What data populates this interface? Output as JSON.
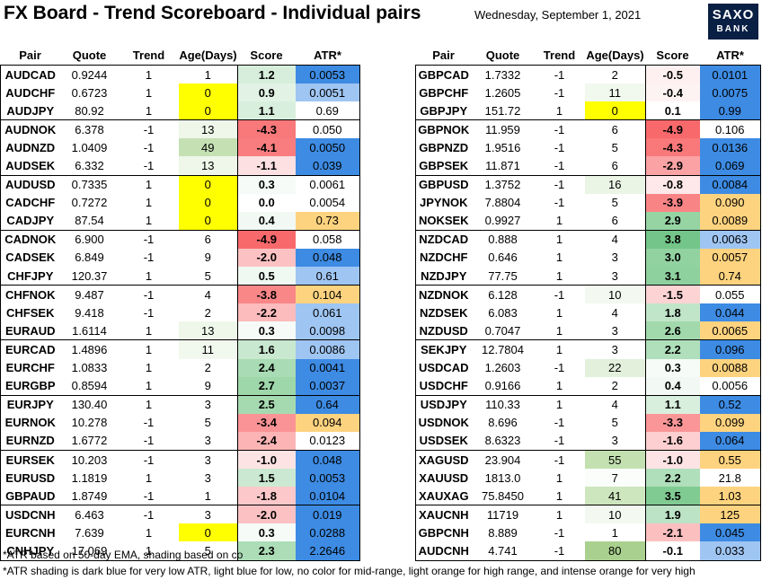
{
  "title": "FX Board - Trend Scoreboard - Individual pairs",
  "date": "Wednesday, September 1, 2021",
  "logo": {
    "line1": "SAXO",
    "line2": "BANK"
  },
  "headers": [
    "Pair",
    "Quote",
    "Trend",
    "Age(Days)",
    "Score",
    "ATR*"
  ],
  "colors": {
    "age_yellow": "#ffff00",
    "score_green_dark": "#63be7b",
    "score_green": "#a9dcb4",
    "score_green_light": "#d6eedb",
    "score_red_dark": "#f8696b",
    "score_red": "#fba7a9",
    "score_red_light": "#fde0e1",
    "atr_dark_blue": "#3d8be3",
    "atr_light_blue": "#9fc5f2",
    "atr_light_orange": "#fed37f",
    "atr_orange": "#fbb04c"
  },
  "left_table": [
    {
      "pair": "AUDCAD",
      "quote": "0.9244",
      "trend": "1",
      "age": "1",
      "score": "1.2",
      "atr": "0.0053",
      "age_bg": "",
      "score_bg": "#d6eedb",
      "atr_bg": "#3d8be3",
      "grp": false
    },
    {
      "pair": "AUDCHF",
      "quote": "0.6723",
      "trend": "1",
      "age": "0",
      "score": "0.9",
      "atr": "0.0051",
      "age_bg": "#ffff00",
      "score_bg": "#e2f3e6",
      "atr_bg": "#9fc5f2",
      "grp": false
    },
    {
      "pair": "AUDJPY",
      "quote": "80.92",
      "trend": "1",
      "age": "0",
      "score": "1.1",
      "atr": "0.69",
      "age_bg": "#ffff00",
      "score_bg": "#d9efde",
      "atr_bg": "",
      "grp": true
    },
    {
      "pair": "AUDNOK",
      "quote": "6.378",
      "trend": "-1",
      "age": "13",
      "score": "-4.3",
      "atr": "0.050",
      "age_bg": "#eef7ea",
      "score_bg": "#f9787a",
      "atr_bg": "",
      "grp": false
    },
    {
      "pair": "AUDNZD",
      "quote": "1.0409",
      "trend": "-1",
      "age": "49",
      "score": "-4.1",
      "atr": "0.0050",
      "age_bg": "#c5e1b4",
      "score_bg": "#f97d7f",
      "atr_bg": "#3d8be3",
      "grp": false
    },
    {
      "pair": "AUDSEK",
      "quote": "6.332",
      "trend": "-1",
      "age": "13",
      "score": "-1.1",
      "atr": "0.039",
      "age_bg": "#eef7ea",
      "score_bg": "#fde0e1",
      "atr_bg": "#3d8be3",
      "grp": true
    },
    {
      "pair": "AUDUSD",
      "quote": "0.7335",
      "trend": "1",
      "age": "0",
      "score": "0.3",
      "atr": "0.0061",
      "age_bg": "#ffff00",
      "score_bg": "#f6fbf7",
      "atr_bg": "",
      "grp": false
    },
    {
      "pair": "CADCHF",
      "quote": "0.7272",
      "trend": "1",
      "age": "0",
      "score": "0.0",
      "atr": "0.0054",
      "age_bg": "#ffff00",
      "score_bg": "",
      "atr_bg": "",
      "grp": false
    },
    {
      "pair": "CADJPY",
      "quote": "87.54",
      "trend": "1",
      "age": "0",
      "score": "0.4",
      "atr": "0.73",
      "age_bg": "#ffff00",
      "score_bg": "#f2f9f4",
      "atr_bg": "#fed37f",
      "grp": true
    },
    {
      "pair": "CADNOK",
      "quote": "6.900",
      "trend": "-1",
      "age": "6",
      "score": "-4.9",
      "atr": "0.058",
      "age_bg": "",
      "score_bg": "#f8696b",
      "atr_bg": "",
      "grp": false
    },
    {
      "pair": "CADSEK",
      "quote": "6.849",
      "trend": "-1",
      "age": "9",
      "score": "-2.0",
      "atr": "0.048",
      "age_bg": "",
      "score_bg": "#fcc2c3",
      "atr_bg": "#3d8be3",
      "grp": false
    },
    {
      "pair": "CHFJPY",
      "quote": "120.37",
      "trend": "1",
      "age": "5",
      "score": "0.5",
      "atr": "0.61",
      "age_bg": "",
      "score_bg": "#eff8f1",
      "atr_bg": "#9fc5f2",
      "grp": true
    },
    {
      "pair": "CHFNOK",
      "quote": "9.487",
      "trend": "-1",
      "age": "4",
      "score": "-3.8",
      "atr": "0.104",
      "age_bg": "",
      "score_bg": "#f98788",
      "atr_bg": "#fed37f",
      "grp": false
    },
    {
      "pair": "CHFSEK",
      "quote": "9.418",
      "trend": "-1",
      "age": "2",
      "score": "-2.2",
      "atr": "0.061",
      "age_bg": "",
      "score_bg": "#fcbbbc",
      "atr_bg": "#9fc5f2",
      "grp": false
    },
    {
      "pair": "EURAUD",
      "quote": "1.6114",
      "trend": "1",
      "age": "13",
      "score": "0.3",
      "atr": "0.0098",
      "age_bg": "#eef7ea",
      "score_bg": "#f6fbf7",
      "atr_bg": "#9fc5f2",
      "grp": true
    },
    {
      "pair": "EURCAD",
      "quote": "1.4896",
      "trend": "1",
      "age": "11",
      "score": "1.6",
      "atr": "0.0086",
      "age_bg": "#f1f8ee",
      "score_bg": "#c8e8cf",
      "atr_bg": "#9fc5f2",
      "grp": false
    },
    {
      "pair": "EURCHF",
      "quote": "1.0833",
      "trend": "1",
      "age": "2",
      "score": "2.4",
      "atr": "0.0041",
      "age_bg": "",
      "score_bg": "#a9dcb4",
      "atr_bg": "#3d8be3",
      "grp": false
    },
    {
      "pair": "EURGBP",
      "quote": "0.8594",
      "trend": "1",
      "age": "9",
      "score": "2.7",
      "atr": "0.0037",
      "age_bg": "",
      "score_bg": "#9ed7aa",
      "atr_bg": "#3d8be3",
      "grp": true
    },
    {
      "pair": "EURJPY",
      "quote": "130.40",
      "trend": "1",
      "age": "3",
      "score": "2.5",
      "atr": "0.64",
      "age_bg": "",
      "score_bg": "#a5dab1",
      "atr_bg": "#3d8be3",
      "grp": false
    },
    {
      "pair": "EURNOK",
      "quote": "10.278",
      "trend": "-1",
      "age": "5",
      "score": "-3.4",
      "atr": "0.094",
      "age_bg": "",
      "score_bg": "#fa9395",
      "atr_bg": "#fed37f",
      "grp": false
    },
    {
      "pair": "EURNZD",
      "quote": "1.6772",
      "trend": "-1",
      "age": "3",
      "score": "-2.4",
      "atr": "0.0123",
      "age_bg": "",
      "score_bg": "#fcb4b5",
      "atr_bg": "",
      "grp": true
    },
    {
      "pair": "EURSEK",
      "quote": "10.203",
      "trend": "-1",
      "age": "3",
      "score": "-1.0",
      "atr": "0.048",
      "age_bg": "",
      "score_bg": "#fde3e4",
      "atr_bg": "#3d8be3",
      "grp": false
    },
    {
      "pair": "EURUSD",
      "quote": "1.1819",
      "trend": "1",
      "age": "3",
      "score": "1.5",
      "atr": "0.0053",
      "age_bg": "",
      "score_bg": "#cbe9d2",
      "atr_bg": "#3d8be3",
      "grp": false
    },
    {
      "pair": "GBPAUD",
      "quote": "1.8749",
      "trend": "-1",
      "age": "1",
      "score": "-1.8",
      "atr": "0.0104",
      "age_bg": "",
      "score_bg": "#fcc8c9",
      "atr_bg": "#3d8be3",
      "grp": true
    },
    {
      "pair": "USDCNH",
      "quote": "6.463",
      "trend": "-1",
      "age": "3",
      "score": "-2.0",
      "atr": "0.019",
      "age_bg": "",
      "score_bg": "#fcc2c3",
      "atr_bg": "#3d8be3",
      "grp": false
    },
    {
      "pair": "EURCNH",
      "quote": "7.639",
      "trend": "1",
      "age": "0",
      "score": "0.3",
      "atr": "0.0288",
      "age_bg": "#ffff00",
      "score_bg": "#f6fbf7",
      "atr_bg": "#3d8be3",
      "grp": false
    },
    {
      "pair": "CNHJPY",
      "quote": "17.069",
      "trend": "1",
      "age": "5",
      "score": "2.3",
      "atr": "2.2646",
      "age_bg": "",
      "score_bg": "#acddb7",
      "atr_bg": "#3d8be3",
      "grp": true
    }
  ],
  "right_table": [
    {
      "pair": "GBPCAD",
      "quote": "1.7332",
      "trend": "-1",
      "age": "2",
      "score": "-0.5",
      "atr": "0.0101",
      "age_bg": "",
      "score_bg": "#fef0f0",
      "atr_bg": "#3d8be3",
      "grp": false
    },
    {
      "pair": "GBPCHF",
      "quote": "1.2605",
      "trend": "-1",
      "age": "11",
      "score": "-0.4",
      "atr": "0.0075",
      "age_bg": "#f1f8ee",
      "score_bg": "#fef3f3",
      "atr_bg": "#3d8be3",
      "grp": false
    },
    {
      "pair": "GBPJPY",
      "quote": "151.72",
      "trend": "1",
      "age": "0",
      "score": "0.1",
      "atr": "0.99",
      "age_bg": "#ffff00",
      "score_bg": "",
      "atr_bg": "#3d8be3",
      "grp": true
    },
    {
      "pair": "GBPNOK",
      "quote": "11.959",
      "trend": "-1",
      "age": "6",
      "score": "-4.9",
      "atr": "0.106",
      "age_bg": "",
      "score_bg": "#f8696b",
      "atr_bg": "",
      "grp": false
    },
    {
      "pair": "GBPNZD",
      "quote": "1.9516",
      "trend": "-1",
      "age": "5",
      "score": "-4.3",
      "atr": "0.0136",
      "age_bg": "",
      "score_bg": "#f9787a",
      "atr_bg": "#3d8be3",
      "grp": false
    },
    {
      "pair": "GBPSEK",
      "quote": "11.871",
      "trend": "-1",
      "age": "6",
      "score": "-2.9",
      "atr": "0.069",
      "age_bg": "",
      "score_bg": "#fba3a4",
      "atr_bg": "#3d8be3",
      "grp": true
    },
    {
      "pair": "GBPUSD",
      "quote": "1.3752",
      "trend": "-1",
      "age": "16",
      "score": "-0.8",
      "atr": "0.0084",
      "age_bg": "#ebf5e6",
      "score_bg": "#fee8e9",
      "atr_bg": "#3d8be3",
      "grp": false
    },
    {
      "pair": "JPYNOK",
      "quote": "7.8804",
      "trend": "-1",
      "age": "5",
      "score": "-3.9",
      "atr": "0.090",
      "age_bg": "",
      "score_bg": "#f98486",
      "atr_bg": "#fed37f",
      "grp": false
    },
    {
      "pair": "NOKSEK",
      "quote": "0.9927",
      "trend": "1",
      "age": "6",
      "score": "2.9",
      "atr": "0.0089",
      "age_bg": "",
      "score_bg": "#96d4a4",
      "atr_bg": "#fed37f",
      "grp": true
    },
    {
      "pair": "NZDCAD",
      "quote": "0.888",
      "trend": "1",
      "age": "4",
      "score": "3.8",
      "atr": "0.0063",
      "age_bg": "",
      "score_bg": "#74c589",
      "atr_bg": "#9fc5f2",
      "grp": false
    },
    {
      "pair": "NZDCHF",
      "quote": "0.646",
      "trend": "1",
      "age": "3",
      "score": "3.0",
      "atr": "0.0057",
      "age_bg": "",
      "score_bg": "#92d2a1",
      "atr_bg": "#fed37f",
      "grp": false
    },
    {
      "pair": "NZDJPY",
      "quote": "77.75",
      "trend": "1",
      "age": "3",
      "score": "3.1",
      "atr": "0.74",
      "age_bg": "",
      "score_bg": "#8fd19e",
      "atr_bg": "#fed37f",
      "grp": true
    },
    {
      "pair": "NZDNOK",
      "quote": "6.128",
      "trend": "-1",
      "age": "10",
      "score": "-1.5",
      "atr": "0.055",
      "age_bg": "#f3f9f0",
      "score_bg": "#fdd3d4",
      "atr_bg": "",
      "grp": false
    },
    {
      "pair": "NZDSEK",
      "quote": "6.083",
      "trend": "1",
      "age": "4",
      "score": "1.8",
      "atr": "0.044",
      "age_bg": "",
      "score_bg": "#c1e5c9",
      "atr_bg": "#3d8be3",
      "grp": false
    },
    {
      "pair": "NZDUSD",
      "quote": "0.7047",
      "trend": "1",
      "age": "3",
      "score": "2.6",
      "atr": "0.0065",
      "age_bg": "",
      "score_bg": "#a1d9ad",
      "atr_bg": "#fed37f",
      "grp": true
    },
    {
      "pair": "SEKJPY",
      "quote": "12.7804",
      "trend": "1",
      "age": "3",
      "score": "2.2",
      "atr": "0.096",
      "age_bg": "",
      "score_bg": "#b0dfbb",
      "atr_bg": "#3d8be3",
      "grp": false
    },
    {
      "pair": "USDCAD",
      "quote": "1.2603",
      "trend": "-1",
      "age": "22",
      "score": "0.3",
      "atr": "0.0088",
      "age_bg": "#e3f0dc",
      "score_bg": "#f6fbf7",
      "atr_bg": "#fed37f",
      "grp": false
    },
    {
      "pair": "USDCHF",
      "quote": "0.9166",
      "trend": "1",
      "age": "2",
      "score": "0.4",
      "atr": "0.0056",
      "age_bg": "",
      "score_bg": "#f2f9f4",
      "atr_bg": "",
      "grp": true
    },
    {
      "pair": "USDJPY",
      "quote": "110.33",
      "trend": "1",
      "age": "4",
      "score": "1.1",
      "atr": "0.52",
      "age_bg": "",
      "score_bg": "#d9efde",
      "atr_bg": "#3d8be3",
      "grp": false
    },
    {
      "pair": "USDNOK",
      "quote": "8.696",
      "trend": "-1",
      "age": "5",
      "score": "-3.3",
      "atr": "0.099",
      "age_bg": "",
      "score_bg": "#fa9698",
      "atr_bg": "#fed37f",
      "grp": false
    },
    {
      "pair": "USDSEK",
      "quote": "8.6323",
      "trend": "-1",
      "age": "3",
      "score": "-1.6",
      "atr": "0.064",
      "age_bg": "",
      "score_bg": "#fdcfd0",
      "atr_bg": "#3d8be3",
      "grp": true
    },
    {
      "pair": "XAGUSD",
      "quote": "23.904",
      "trend": "-1",
      "age": "55",
      "score": "-1.0",
      "atr": "0.55",
      "age_bg": "#c3e0b0",
      "score_bg": "#fde3e4",
      "atr_bg": "#fed37f",
      "grp": false
    },
    {
      "pair": "XAUUSD",
      "quote": "1813.0",
      "trend": "1",
      "age": "7",
      "score": "2.2",
      "atr": "21.8",
      "age_bg": "#fafdf9",
      "score_bg": "#b0dfbb",
      "atr_bg": "",
      "grp": false
    },
    {
      "pair": "XAUXAG",
      "quote": "75.8450",
      "trend": "1",
      "age": "41",
      "score": "3.5",
      "atr": "1.03",
      "age_bg": "#cde6be",
      "score_bg": "#80cb92",
      "atr_bg": "#fed37f",
      "grp": true
    },
    {
      "pair": "XAUCNH",
      "quote": "11719",
      "trend": "1",
      "age": "10",
      "score": "1.9",
      "atr": "125",
      "age_bg": "#f3f9f0",
      "score_bg": "#bde3c6",
      "atr_bg": "#fed37f",
      "grp": false
    },
    {
      "pair": "GBPCNH",
      "quote": "8.889",
      "trend": "-1",
      "age": "1",
      "score": "-2.1",
      "atr": "0.045",
      "age_bg": "",
      "score_bg": "#fcbfc0",
      "atr_bg": "#3d8be3",
      "grp": false
    },
    {
      "pair": "AUDCNH",
      "quote": "4.741",
      "trend": "-1",
      "age": "80",
      "score": "-0.1",
      "atr": "0.033",
      "age_bg": "#a9d08e",
      "score_bg": "",
      "atr_bg": "#9fc5f2",
      "grp": true
    }
  ],
  "notes": {
    "note1": "*ATR based on 50-day EMA, shading based on co",
    "note2": "*ATR shading is dark blue for very low ATR, light blue for low, no color for mid-range, light orange for high range, and intense orange for very high"
  }
}
